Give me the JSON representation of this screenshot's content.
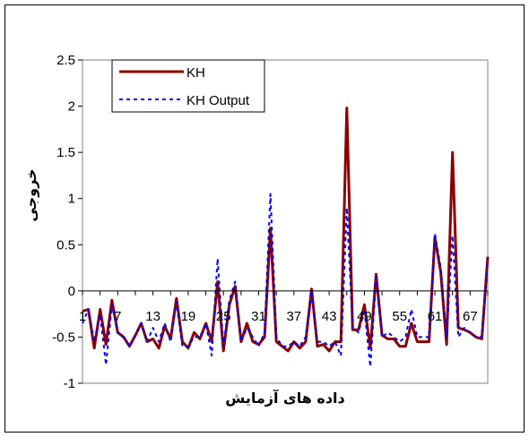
{
  "chart_data": {
    "type": "line",
    "title": "",
    "xlabel": "داده های آزمایش",
    "ylabel": "خروجی",
    "ylim": [
      -1,
      2.5
    ],
    "yticks": [
      -1,
      -0.5,
      0,
      0.5,
      1,
      1.5,
      2,
      2.5
    ],
    "ytick_labels": [
      "-1",
      "-0.5",
      "0",
      "0.5",
      "1",
      "1.5",
      "2",
      "2.5"
    ],
    "xticks": [
      1,
      7,
      13,
      19,
      25,
      31,
      37,
      43,
      49,
      55,
      61,
      67
    ],
    "xtick_labels": [
      "1",
      "7",
      "13",
      "19",
      "25",
      "31",
      "37",
      "43",
      "49",
      "55",
      "61",
      "67"
    ],
    "xlim": [
      1,
      70
    ],
    "grid": false,
    "legend_position": "top-left",
    "series": [
      {
        "name": "KH",
        "color": "#8b0000",
        "style": "solid",
        "x": [
          1,
          2,
          3,
          4,
          5,
          6,
          7,
          8,
          9,
          10,
          11,
          12,
          13,
          14,
          15,
          16,
          17,
          18,
          19,
          20,
          21,
          22,
          23,
          24,
          25,
          26,
          27,
          28,
          29,
          30,
          31,
          32,
          33,
          34,
          35,
          36,
          37,
          38,
          39,
          40,
          41,
          42,
          43,
          44,
          45,
          46,
          47,
          48,
          49,
          50,
          51,
          52,
          53,
          54,
          55,
          56,
          57,
          58,
          59,
          60,
          61,
          62,
          63,
          64,
          65,
          66,
          67,
          68,
          69,
          70
        ],
        "values": [
          -0.22,
          -0.2,
          -0.62,
          -0.2,
          -0.58,
          -0.1,
          -0.45,
          -0.5,
          -0.6,
          -0.48,
          -0.35,
          -0.55,
          -0.52,
          -0.62,
          -0.38,
          -0.52,
          -0.08,
          -0.55,
          -0.62,
          -0.45,
          -0.52,
          -0.35,
          -0.55,
          0.1,
          -0.65,
          -0.15,
          0.05,
          -0.55,
          -0.35,
          -0.55,
          -0.58,
          -0.5,
          0.68,
          -0.55,
          -0.6,
          -0.65,
          -0.55,
          -0.62,
          -0.55,
          0.02,
          -0.6,
          -0.58,
          -0.65,
          -0.55,
          -0.55,
          1.98,
          -0.42,
          -0.42,
          -0.15,
          -0.62,
          0.18,
          -0.48,
          -0.52,
          -0.52,
          -0.6,
          -0.6,
          -0.35,
          -0.55,
          -0.55,
          -0.55,
          0.58,
          0.2,
          -0.58,
          1.5,
          -0.4,
          -0.42,
          -0.45,
          -0.5,
          -0.52,
          0.37
        ]
      },
      {
        "name": "KH Output",
        "color": "#0000ff",
        "style": "dashed",
        "x": [
          1,
          2,
          3,
          4,
          5,
          6,
          7,
          8,
          9,
          10,
          11,
          12,
          13,
          14,
          15,
          16,
          17,
          18,
          19,
          20,
          21,
          22,
          23,
          24,
          25,
          26,
          27,
          28,
          29,
          30,
          31,
          32,
          33,
          34,
          35,
          36,
          37,
          38,
          39,
          40,
          41,
          42,
          43,
          44,
          45,
          46,
          47,
          48,
          49,
          50,
          51,
          52,
          53,
          54,
          55,
          56,
          57,
          58,
          59,
          60,
          61,
          62,
          63,
          64,
          65,
          66,
          67,
          68,
          69,
          70
        ],
        "values": [
          -0.35,
          -0.2,
          -0.55,
          -0.25,
          -0.8,
          -0.15,
          -0.45,
          -0.5,
          -0.6,
          -0.48,
          -0.35,
          -0.55,
          -0.4,
          -0.55,
          -0.35,
          -0.55,
          -0.12,
          -0.6,
          -0.6,
          -0.5,
          -0.5,
          -0.35,
          -0.7,
          0.35,
          -0.6,
          -0.1,
          0.1,
          -0.55,
          -0.4,
          -0.5,
          -0.6,
          -0.45,
          1.05,
          -0.5,
          -0.6,
          -0.6,
          -0.55,
          -0.6,
          -0.5,
          0.0,
          -0.55,
          -0.55,
          -0.6,
          -0.55,
          -0.7,
          0.9,
          -0.4,
          -0.45,
          -0.2,
          -0.82,
          0.15,
          -0.5,
          -0.45,
          -0.5,
          -0.55,
          -0.5,
          -0.2,
          -0.5,
          -0.5,
          -0.5,
          0.62,
          0.25,
          -0.5,
          0.6,
          -0.5,
          -0.4,
          -0.45,
          -0.5,
          -0.5,
          0.35
        ]
      }
    ]
  }
}
